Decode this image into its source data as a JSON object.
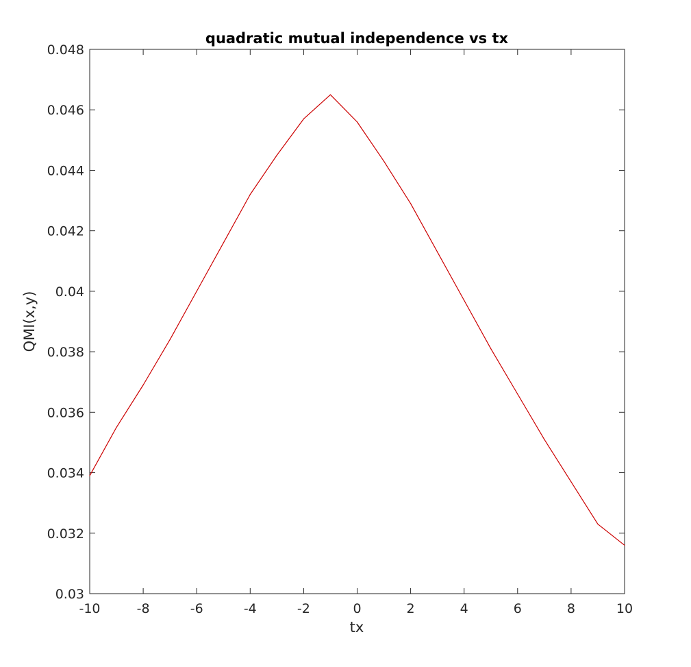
{
  "chart_data": {
    "type": "line",
    "title": "quadratic mutual independence vs tx",
    "xlabel": "tx",
    "ylabel": "QMI(x,y)",
    "xlim": [
      -10,
      10
    ],
    "ylim": [
      0.03,
      0.048
    ],
    "xticks": [
      "-10",
      "-8",
      "-6",
      "-4",
      "-2",
      "0",
      "2",
      "4",
      "6",
      "8",
      "10"
    ],
    "yticks": [
      "0.03",
      "0.032",
      "0.034",
      "0.036",
      "0.038",
      "0.04",
      "0.042",
      "0.044",
      "0.046",
      "0.048"
    ],
    "grid": false,
    "series": [
      {
        "color": "#cc0000",
        "x": [
          -10,
          -9,
          -8,
          -7,
          -6,
          -5,
          -4,
          -3,
          -2,
          -1,
          0,
          1,
          2,
          3,
          4,
          5,
          6,
          7,
          8,
          9,
          10
        ],
        "y": [
          0.0339,
          0.0355,
          0.0369,
          0.0384,
          0.04,
          0.0416,
          0.0432,
          0.0445,
          0.0457,
          0.0465,
          0.0456,
          0.0443,
          0.0429,
          0.0413,
          0.0397,
          0.0381,
          0.0366,
          0.0351,
          0.0337,
          0.0323,
          0.0316
        ]
      }
    ]
  }
}
